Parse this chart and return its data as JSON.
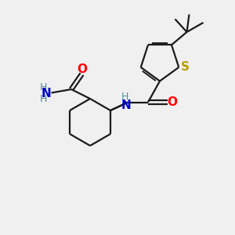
{
  "bg_color": "#f0f0f0",
  "atom_colors": {
    "S": "#b8a000",
    "O": "#ff0000",
    "N_blue": "#0000cc",
    "N_teal": "#4a9090",
    "C": "#000000",
    "H": "#4a9090"
  },
  "bond_color": "#1a1a1a",
  "lw": 1.6,
  "figsize": [
    3.0,
    3.0
  ],
  "dpi": 100,
  "xlim": [
    0,
    10
  ],
  "ylim": [
    0,
    10
  ]
}
